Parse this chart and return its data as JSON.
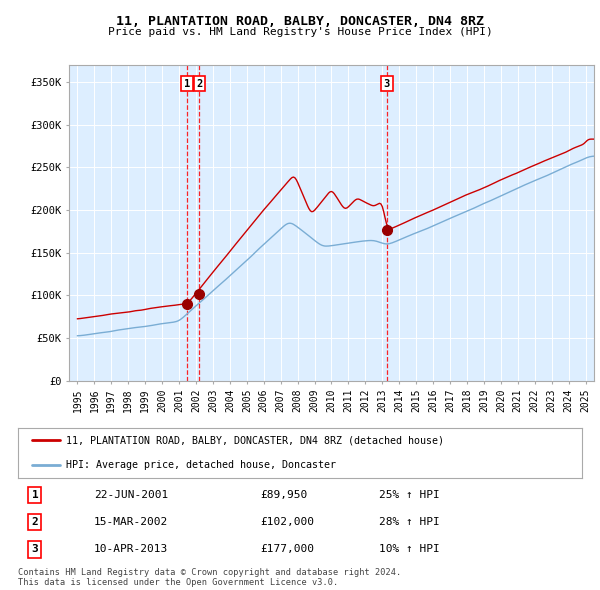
{
  "title": "11, PLANTATION ROAD, BALBY, DONCASTER, DN4 8RZ",
  "subtitle": "Price paid vs. HM Land Registry's House Price Index (HPI)",
  "legend_red": "11, PLANTATION ROAD, BALBY, DONCASTER, DN4 8RZ (detached house)",
  "legend_blue": "HPI: Average price, detached house, Doncaster",
  "red_color": "#cc0000",
  "blue_color": "#7aadd4",
  "bg_color": "#ddeeff",
  "sale_marker_color": "#990000",
  "sales": [
    {
      "label": "1",
      "date": "22-JUN-2001",
      "price": 89950,
      "x_year": 2001.47
    },
    {
      "label": "2",
      "date": "15-MAR-2002",
      "price": 102000,
      "x_year": 2002.2
    },
    {
      "label": "3",
      "date": "10-APR-2013",
      "price": 177000,
      "x_year": 2013.27
    }
  ],
  "table_rows": [
    [
      "1",
      "22-JUN-2001",
      "£89,950",
      "25% ↑ HPI"
    ],
    [
      "2",
      "15-MAR-2002",
      "£102,000",
      "28% ↑ HPI"
    ],
    [
      "3",
      "10-APR-2013",
      "£177,000",
      "10% ↑ HPI"
    ]
  ],
  "footer": "Contains HM Land Registry data © Crown copyright and database right 2024.\nThis data is licensed under the Open Government Licence v3.0.",
  "ylim": [
    0,
    370000
  ],
  "yticks": [
    0,
    50000,
    100000,
    150000,
    200000,
    250000,
    300000,
    350000
  ],
  "ytick_labels": [
    "£0",
    "£50K",
    "£100K",
    "£150K",
    "£200K",
    "£250K",
    "£300K",
    "£350K"
  ],
  "xlim_start": 1994.5,
  "xlim_end": 2025.5
}
